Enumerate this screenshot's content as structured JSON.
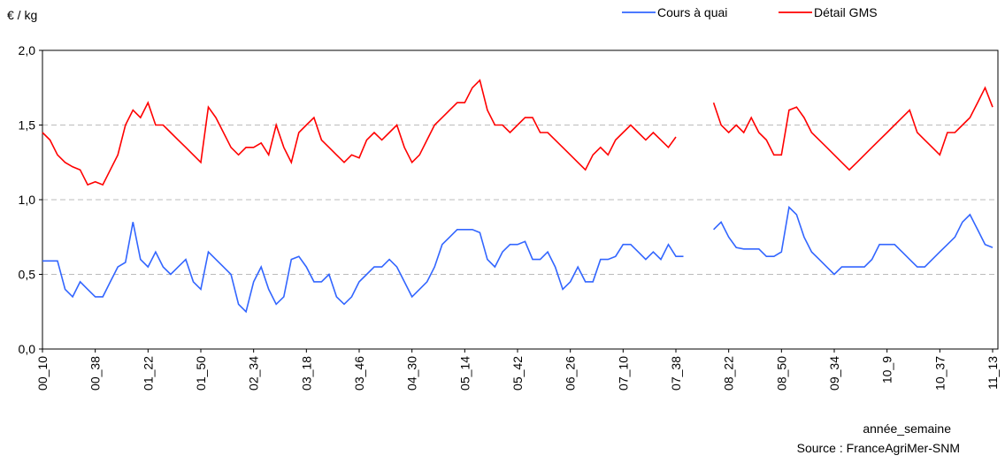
{
  "chart_data": {
    "type": "line",
    "y_label": "€ / kg",
    "x_label": "année_semaine",
    "source": "Source : FranceAgriMer-SNM",
    "categories": [
      "00_10",
      null,
      null,
      null,
      null,
      null,
      null,
      "00_38",
      null,
      null,
      null,
      null,
      null,
      null,
      "01_22",
      null,
      null,
      null,
      null,
      null,
      null,
      "01_50",
      null,
      null,
      null,
      null,
      null,
      null,
      "02_34",
      null,
      null,
      null,
      null,
      null,
      null,
      "03_18",
      null,
      null,
      null,
      null,
      null,
      null,
      "03_46",
      null,
      null,
      null,
      null,
      null,
      null,
      "04_30",
      null,
      null,
      null,
      null,
      null,
      null,
      "05_14",
      null,
      null,
      null,
      null,
      null,
      null,
      "05_42",
      null,
      null,
      null,
      null,
      null,
      null,
      "06_26",
      null,
      null,
      null,
      null,
      null,
      null,
      "07_10",
      null,
      null,
      null,
      null,
      null,
      null,
      "07_38",
      null,
      null,
      null,
      null,
      null,
      null,
      "08_22",
      null,
      null,
      null,
      null,
      null,
      null,
      "08_50",
      null,
      null,
      null,
      null,
      null,
      null,
      "09_34",
      null,
      null,
      null,
      null,
      null,
      null,
      "10_9",
      null,
      null,
      null,
      null,
      null,
      null,
      "10_37",
      null,
      null,
      null,
      null,
      null,
      null,
      "11_13"
    ],
    "series": [
      {
        "name": "Cours à quai",
        "color": "#3366ff",
        "values": [
          0.59,
          0.59,
          0.59,
          0.4,
          0.35,
          0.45,
          0.4,
          0.35,
          0.35,
          0.45,
          0.55,
          0.58,
          0.85,
          0.6,
          0.55,
          0.65,
          0.55,
          0.5,
          0.55,
          0.6,
          0.45,
          0.4,
          0.65,
          0.6,
          0.55,
          0.5,
          0.3,
          0.25,
          0.45,
          0.55,
          0.4,
          0.3,
          0.35,
          0.6,
          0.62,
          0.55,
          0.45,
          0.45,
          0.5,
          0.35,
          0.3,
          0.35,
          0.45,
          0.5,
          0.55,
          0.55,
          0.6,
          0.55,
          0.45,
          0.35,
          0.4,
          0.45,
          0.55,
          0.7,
          0.75,
          0.8,
          0.8,
          0.8,
          0.78,
          0.6,
          0.55,
          0.65,
          0.7,
          0.7,
          0.72,
          0.6,
          0.6,
          0.65,
          0.55,
          0.4,
          0.45,
          0.55,
          0.45,
          0.45,
          0.6,
          0.6,
          0.62,
          0.7,
          0.7,
          0.65,
          0.6,
          0.65,
          0.6,
          0.7,
          0.62,
          0.62,
          null,
          null,
          null,
          0.8,
          0.85,
          0.75,
          0.68,
          0.67,
          0.67,
          0.67,
          0.62,
          0.62,
          0.65,
          0.95,
          0.9,
          0.75,
          0.65,
          0.6,
          0.55,
          0.5,
          0.55,
          0.55,
          0.55,
          0.55,
          0.6,
          0.7,
          0.7,
          0.7,
          0.65,
          0.6,
          0.55,
          0.55,
          0.6,
          0.65,
          0.7,
          0.75,
          0.85,
          0.9,
          0.8,
          0.7,
          0.68
        ]
      },
      {
        "name": "Détail GMS",
        "color": "#ff0000",
        "values": [
          1.45,
          1.4,
          1.3,
          1.25,
          1.22,
          1.2,
          1.1,
          1.12,
          1.1,
          1.2,
          1.3,
          1.5,
          1.6,
          1.55,
          1.65,
          1.5,
          1.5,
          1.45,
          1.4,
          1.35,
          1.3,
          1.25,
          1.62,
          1.55,
          1.45,
          1.35,
          1.3,
          1.35,
          1.35,
          1.38,
          1.3,
          1.5,
          1.35,
          1.25,
          1.45,
          1.5,
          1.55,
          1.4,
          1.35,
          1.3,
          1.25,
          1.3,
          1.28,
          1.4,
          1.45,
          1.4,
          1.45,
          1.5,
          1.35,
          1.25,
          1.3,
          1.4,
          1.5,
          1.55,
          1.6,
          1.65,
          1.65,
          1.75,
          1.8,
          1.6,
          1.5,
          1.5,
          1.45,
          1.5,
          1.55,
          1.55,
          1.45,
          1.45,
          1.4,
          1.35,
          1.3,
          1.25,
          1.2,
          1.3,
          1.35,
          1.3,
          1.4,
          1.45,
          1.5,
          1.45,
          1.4,
          1.45,
          1.4,
          1.35,
          1.42,
          null,
          null,
          null,
          null,
          1.65,
          1.5,
          1.45,
          1.5,
          1.45,
          1.55,
          1.45,
          1.4,
          1.3,
          1.3,
          1.6,
          1.62,
          1.55,
          1.45,
          1.4,
          1.35,
          1.3,
          1.25,
          1.2,
          1.25,
          1.3,
          1.35,
          1.4,
          1.45,
          1.5,
          1.55,
          1.6,
          1.45,
          1.4,
          1.35,
          1.3,
          1.45,
          1.45,
          1.5,
          1.55,
          1.65,
          1.75,
          1.62
        ]
      }
    ],
    "ylim": [
      0,
      2
    ],
    "yticks": [
      {
        "value": 0,
        "label": "0,0"
      },
      {
        "value": 0.5,
        "label": "0,5"
      },
      {
        "value": 1,
        "label": "1,0"
      },
      {
        "value": 1.5,
        "label": "1,5"
      },
      {
        "value": 2,
        "label": "2,0"
      }
    ],
    "grid": true
  }
}
